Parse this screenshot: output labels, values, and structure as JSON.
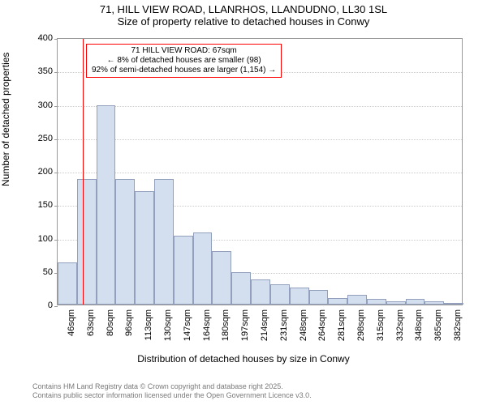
{
  "title": {
    "line1": "71, HILL VIEW ROAD, LLANRHOS, LLANDUDNO, LL30 1SL",
    "line2": "Size of property relative to detached houses in Conwy"
  },
  "yaxis": {
    "label": "Number of detached properties"
  },
  "xaxis": {
    "label": "Distribution of detached houses by size in Conwy"
  },
  "chart": {
    "type": "histogram",
    "ylim": [
      0,
      400
    ],
    "yticks": [
      0,
      50,
      100,
      150,
      200,
      250,
      300,
      350,
      400
    ],
    "xticks": [
      "46sqm",
      "63sqm",
      "80sqm",
      "96sqm",
      "113sqm",
      "130sqm",
      "147sqm",
      "164sqm",
      "180sqm",
      "197sqm",
      "214sqm",
      "231sqm",
      "248sqm",
      "264sqm",
      "281sqm",
      "298sqm",
      "315sqm",
      "332sqm",
      "348sqm",
      "365sqm",
      "382sqm"
    ],
    "values": [
      63,
      188,
      298,
      188,
      170,
      188,
      103,
      108,
      80,
      48,
      38,
      30,
      25,
      22,
      10,
      15,
      8,
      5,
      8,
      5,
      3
    ],
    "bar_fill": "#d3deef",
    "bar_stroke": "#929fbd",
    "grid_color": "#cccccc",
    "background": "#ffffff",
    "axis_color": "#999999",
    "marker": {
      "sqm": 67,
      "color": "#ff0000",
      "position_index": 1.3
    },
    "callout": {
      "line1": "71 HILL VIEW ROAD: 67sqm",
      "line2": "← 8% of detached houses are smaller (98)",
      "line3": "92% of semi-detached houses are larger (1,154) →"
    }
  },
  "footer": {
    "line1": "Contains HM Land Registry data © Crown copyright and database right 2025.",
    "line2": "Contains public sector information licensed under the Open Government Licence v3.0."
  }
}
